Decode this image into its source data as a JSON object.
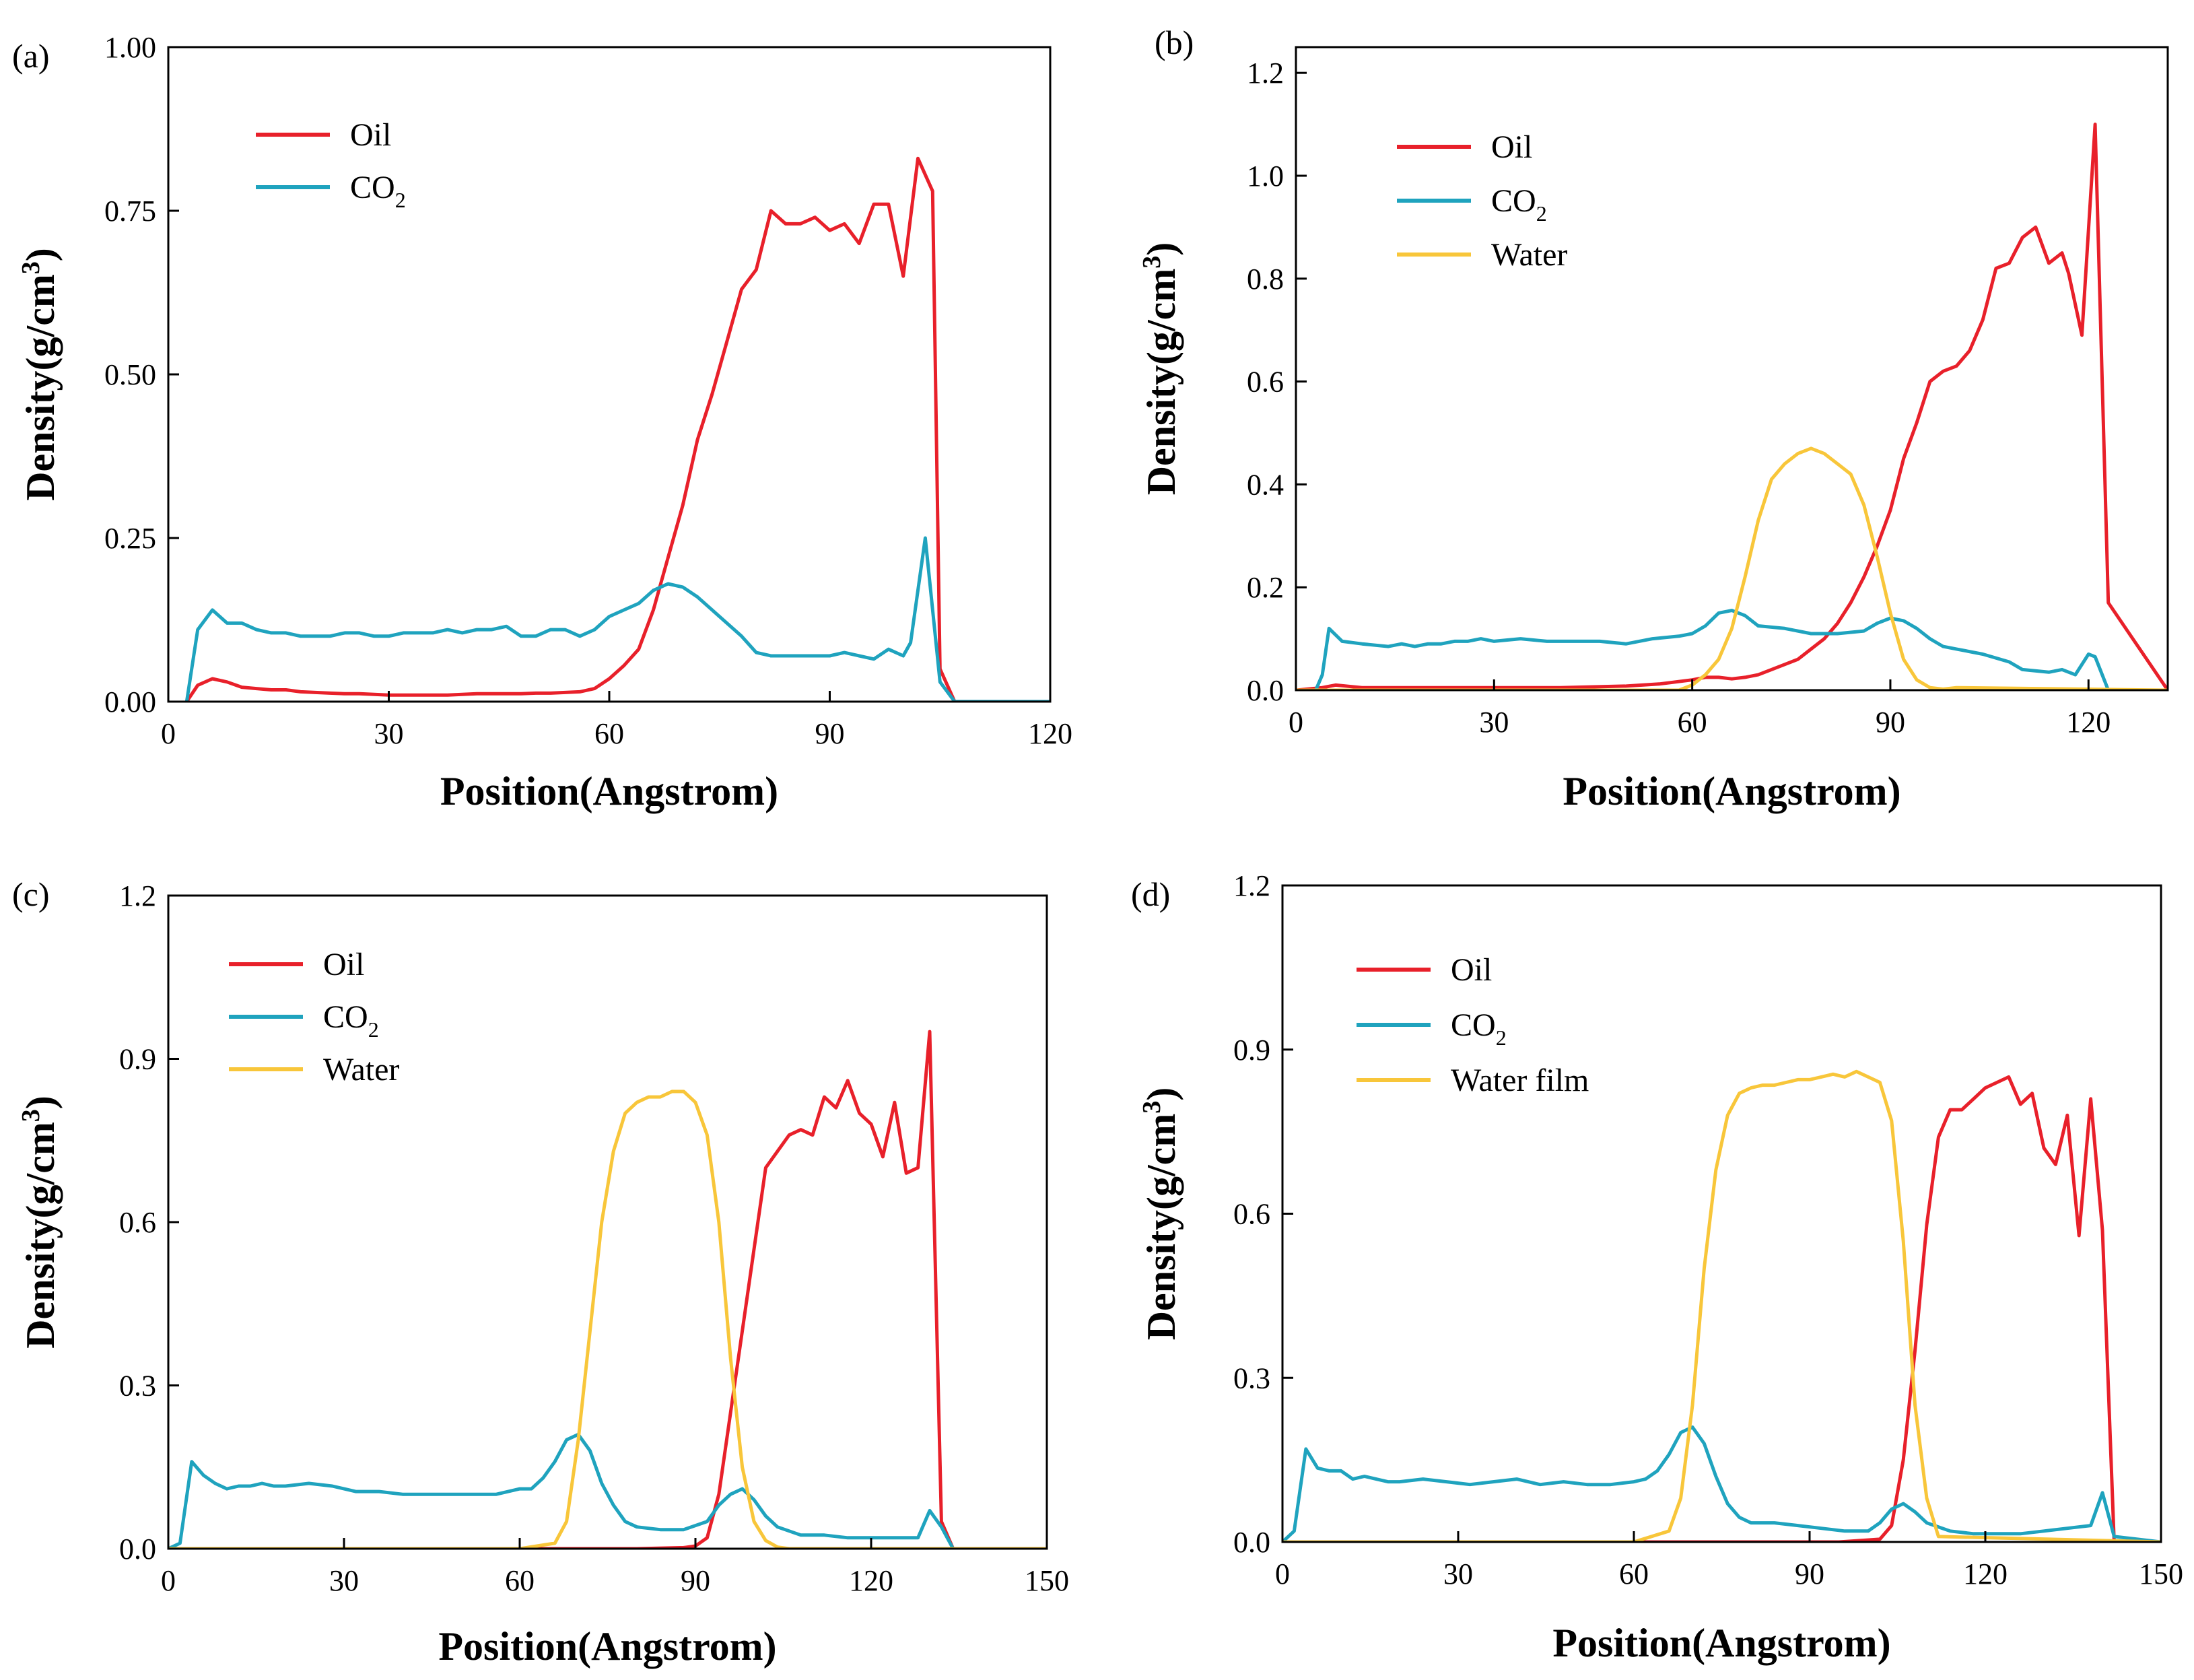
{
  "chart_data": [
    {
      "type": "line",
      "panel": "(a)",
      "xlabel": "Position(Angstrom)",
      "ylabel": "Density(g/cm",
      "ylabel_sup": "3",
      "ylabel_close": ")",
      "xlim": [
        0,
        120
      ],
      "ylim": [
        0,
        1.0
      ],
      "xticks": [
        0,
        30,
        60,
        90,
        120
      ],
      "yticks": [
        0,
        0.25,
        0.5,
        0.75,
        1.0
      ],
      "ytick_labels": [
        "0.00",
        "0.25",
        "0.50",
        "0.75",
        "1.00"
      ],
      "xtick_labels": [
        "0",
        "30",
        "60",
        "90",
        "120"
      ],
      "legend_position": "top-left",
      "series": [
        {
          "name": "Oil",
          "sub": "",
          "color": "#e8202a",
          "x": [
            2.5,
            4,
            6,
            8,
            10,
            12,
            14,
            16,
            18,
            20,
            22,
            24,
            26,
            28,
            30,
            32,
            34,
            36,
            38,
            40,
            42,
            44,
            46,
            48,
            50,
            52,
            54,
            56,
            58,
            60,
            62,
            64,
            66,
            68,
            70,
            72,
            74,
            76,
            78,
            80,
            82,
            84,
            86,
            88,
            90,
            92,
            94,
            96,
            98,
            100,
            102,
            104,
            105,
            107,
            110,
            120
          ],
          "y": [
            0,
            0.025,
            0.035,
            0.03,
            0.022,
            0.02,
            0.018,
            0.018,
            0.015,
            0.014,
            0.013,
            0.012,
            0.012,
            0.011,
            0.01,
            0.01,
            0.01,
            0.01,
            0.01,
            0.011,
            0.012,
            0.012,
            0.012,
            0.012,
            0.013,
            0.013,
            0.014,
            0.015,
            0.02,
            0.035,
            0.055,
            0.08,
            0.14,
            0.22,
            0.3,
            0.4,
            0.47,
            0.55,
            0.63,
            0.66,
            0.75,
            0.73,
            0.73,
            0.74,
            0.72,
            0.73,
            0.7,
            0.76,
            0.76,
            0.65,
            0.83,
            0.78,
            0.05,
            0,
            0,
            0
          ]
        },
        {
          "name": "CO",
          "sub": "2",
          "color": "#1fa3be",
          "x": [
            2.5,
            4,
            6,
            8,
            10,
            12,
            14,
            16,
            18,
            20,
            22,
            24,
            26,
            28,
            30,
            32,
            34,
            36,
            38,
            40,
            42,
            44,
            46,
            48,
            50,
            52,
            54,
            56,
            58,
            60,
            62,
            64,
            66,
            68,
            70,
            72,
            74,
            76,
            78,
            80,
            82,
            84,
            86,
            88,
            90,
            92,
            94,
            96,
            98,
            100,
            101,
            103,
            105,
            107,
            110,
            120
          ],
          "y": [
            0,
            0.11,
            0.14,
            0.12,
            0.12,
            0.11,
            0.105,
            0.105,
            0.1,
            0.1,
            0.1,
            0.105,
            0.105,
            0.1,
            0.1,
            0.105,
            0.105,
            0.105,
            0.11,
            0.105,
            0.11,
            0.11,
            0.115,
            0.1,
            0.1,
            0.11,
            0.11,
            0.1,
            0.11,
            0.13,
            0.14,
            0.15,
            0.17,
            0.18,
            0.175,
            0.16,
            0.14,
            0.12,
            0.1,
            0.075,
            0.07,
            0.07,
            0.07,
            0.07,
            0.07,
            0.075,
            0.07,
            0.065,
            0.08,
            0.07,
            0.09,
            0.25,
            0.03,
            0,
            0,
            0
          ]
        }
      ]
    },
    {
      "type": "line",
      "panel": "(b)",
      "xlabel": "Position(Angstrom)",
      "ylabel": "Density(g/cm",
      "ylabel_sup": "3",
      "ylabel_close": ")",
      "xlim": [
        0,
        132
      ],
      "ylim": [
        0,
        1.25
      ],
      "xticks": [
        0,
        30,
        60,
        90,
        120
      ],
      "yticks": [
        0,
        0.2,
        0.4,
        0.6,
        0.8,
        1.0,
        1.2
      ],
      "ytick_labels": [
        "0.0",
        "0.2",
        "0.4",
        "0.6",
        "0.8",
        "1.0",
        "1.2"
      ],
      "xtick_labels": [
        "0",
        "30",
        "60",
        "90",
        "120"
      ],
      "legend_position": "top-left",
      "series": [
        {
          "name": "Oil",
          "sub": "",
          "color": "#e8202a",
          "x": [
            0,
            4,
            6,
            10,
            20,
            30,
            40,
            50,
            55,
            60,
            62,
            64,
            66,
            68,
            70,
            72,
            74,
            76,
            78,
            80,
            82,
            84,
            86,
            88,
            90,
            92,
            94,
            96,
            98,
            100,
            102,
            104,
            106,
            108,
            110,
            112,
            114,
            116,
            117,
            119,
            121,
            123,
            132
          ],
          "y": [
            0,
            0.005,
            0.01,
            0.005,
            0.005,
            0.005,
            0.005,
            0.008,
            0.012,
            0.02,
            0.025,
            0.025,
            0.022,
            0.025,
            0.03,
            0.04,
            0.05,
            0.06,
            0.08,
            0.1,
            0.13,
            0.17,
            0.22,
            0.28,
            0.35,
            0.45,
            0.52,
            0.6,
            0.62,
            0.63,
            0.66,
            0.72,
            0.82,
            0.83,
            0.88,
            0.9,
            0.83,
            0.85,
            0.81,
            0.69,
            1.1,
            0.17,
            0
          ]
        },
        {
          "name": "CO",
          "sub": "2",
          "color": "#1fa3be",
          "x": [
            0,
            3,
            4,
            5,
            7,
            10,
            14,
            16,
            18,
            20,
            22,
            24,
            26,
            28,
            30,
            34,
            38,
            42,
            46,
            50,
            54,
            58,
            60,
            62,
            64,
            66,
            68,
            70,
            74,
            78,
            82,
            86,
            88,
            90,
            92,
            94,
            96,
            98,
            100,
            104,
            108,
            110,
            114,
            116,
            118,
            120,
            121,
            123,
            132
          ],
          "y": [
            0,
            0,
            0.03,
            0.12,
            0.095,
            0.09,
            0.085,
            0.09,
            0.085,
            0.09,
            0.09,
            0.095,
            0.095,
            0.1,
            0.095,
            0.1,
            0.095,
            0.095,
            0.095,
            0.09,
            0.1,
            0.105,
            0.11,
            0.125,
            0.15,
            0.155,
            0.145,
            0.125,
            0.12,
            0.11,
            0.11,
            0.115,
            0.13,
            0.14,
            0.135,
            0.12,
            0.1,
            0.085,
            0.08,
            0.07,
            0.055,
            0.04,
            0.035,
            0.04,
            0.03,
            0.07,
            0.065,
            0.0,
            0
          ]
        },
        {
          "name": "Water",
          "sub": "",
          "color": "#f8c63a",
          "x": [
            0,
            50,
            58,
            60,
            62,
            64,
            66,
            68,
            70,
            72,
            74,
            76,
            78,
            80,
            82,
            84,
            86,
            88,
            90,
            92,
            94,
            96,
            98,
            100,
            132
          ],
          "y": [
            0,
            0,
            0,
            0.01,
            0.03,
            0.06,
            0.12,
            0.22,
            0.33,
            0.41,
            0.44,
            0.46,
            0.47,
            0.46,
            0.44,
            0.42,
            0.36,
            0.26,
            0.15,
            0.06,
            0.02,
            0.005,
            0.002,
            0.005,
            0
          ]
        }
      ]
    },
    {
      "type": "line",
      "panel": "(c)",
      "xlabel": "Position(Angstrom)",
      "ylabel": "Density(g/cm",
      "ylabel_sup": "3",
      "ylabel_close": ")",
      "xlim": [
        0,
        150
      ],
      "ylim": [
        0,
        1.2
      ],
      "xticks": [
        0,
        30,
        60,
        90,
        120,
        150
      ],
      "yticks": [
        0,
        0.3,
        0.6,
        0.9,
        1.2
      ],
      "ytick_labels": [
        "0.0",
        "0.3",
        "0.6",
        "0.9",
        "1.2"
      ],
      "xtick_labels": [
        "0",
        "30",
        "60",
        "90",
        "120",
        "150"
      ],
      "legend_position": "top-left",
      "series": [
        {
          "name": "Oil",
          "sub": "",
          "color": "#e8202a",
          "x": [
            0,
            80,
            88,
            90,
            92,
            94,
            96,
            98,
            100,
            102,
            104,
            106,
            108,
            110,
            112,
            114,
            116,
            118,
            120,
            122,
            124,
            126,
            128,
            130,
            132,
            134,
            150
          ],
          "y": [
            0,
            0,
            0.002,
            0.005,
            0.02,
            0.1,
            0.25,
            0.4,
            0.55,
            0.7,
            0.73,
            0.76,
            0.77,
            0.76,
            0.83,
            0.81,
            0.86,
            0.8,
            0.78,
            0.72,
            0.82,
            0.69,
            0.7,
            0.95,
            0.05,
            0,
            0
          ]
        },
        {
          "name": "CO",
          "sub": "2",
          "color": "#1fa3be",
          "x": [
            0,
            2,
            4,
            6,
            8,
            10,
            12,
            14,
            16,
            18,
            20,
            24,
            28,
            32,
            36,
            40,
            44,
            48,
            52,
            56,
            60,
            62,
            64,
            66,
            68,
            70,
            72,
            74,
            76,
            78,
            80,
            84,
            88,
            92,
            94,
            96,
            98,
            100,
            102,
            104,
            108,
            112,
            116,
            120,
            124,
            128,
            130,
            132,
            134,
            150
          ],
          "y": [
            0,
            0.01,
            0.16,
            0.135,
            0.12,
            0.11,
            0.115,
            0.115,
            0.12,
            0.115,
            0.115,
            0.12,
            0.115,
            0.105,
            0.105,
            0.1,
            0.1,
            0.1,
            0.1,
            0.1,
            0.11,
            0.11,
            0.13,
            0.16,
            0.2,
            0.21,
            0.18,
            0.12,
            0.08,
            0.05,
            0.04,
            0.035,
            0.035,
            0.05,
            0.08,
            0.1,
            0.11,
            0.09,
            0.06,
            0.04,
            0.025,
            0.025,
            0.02,
            0.02,
            0.02,
            0.02,
            0.07,
            0.04,
            0,
            0
          ]
        },
        {
          "name": "Water",
          "sub": "",
          "color": "#f8c63a",
          "x": [
            0,
            60,
            66,
            68,
            70,
            72,
            74,
            76,
            78,
            80,
            82,
            84,
            86,
            88,
            90,
            92,
            94,
            96,
            98,
            100,
            102,
            104,
            106,
            150
          ],
          "y": [
            0,
            0,
            0.01,
            0.05,
            0.2,
            0.4,
            0.6,
            0.73,
            0.8,
            0.82,
            0.83,
            0.83,
            0.84,
            0.84,
            0.82,
            0.76,
            0.6,
            0.35,
            0.15,
            0.05,
            0.015,
            0.003,
            0,
            0
          ]
        }
      ]
    },
    {
      "type": "line",
      "panel": "(d)",
      "xlabel": "Position(Angstrom)",
      "ylabel": "Density(g/cm",
      "ylabel_sup": "3",
      "ylabel_close": ")",
      "xlim": [
        0,
        150
      ],
      "ylim": [
        0,
        1.2
      ],
      "xticks": [
        0,
        30,
        60,
        90,
        120,
        150
      ],
      "yticks": [
        0,
        0.3,
        0.6,
        0.9,
        1.2
      ],
      "ytick_labels": [
        "0.0",
        "0.3",
        "0.6",
        "0.9",
        "1.2"
      ],
      "xtick_labels": [
        "0",
        "30",
        "60",
        "90",
        "120",
        "150"
      ],
      "legend_position": "top-left",
      "series": [
        {
          "name": "Oil",
          "sub": "",
          "color": "#e8202a",
          "x": [
            0,
            95,
            102,
            104,
            106,
            108,
            110,
            112,
            114,
            116,
            118,
            120,
            122,
            124,
            126,
            128,
            130,
            132,
            134,
            136,
            138,
            140,
            142,
            150
          ],
          "y": [
            0,
            0,
            0.005,
            0.03,
            0.15,
            0.35,
            0.58,
            0.74,
            0.79,
            0.79,
            0.81,
            0.83,
            0.84,
            0.85,
            0.8,
            0.82,
            0.72,
            0.69,
            0.78,
            0.56,
            0.81,
            0.57,
            0,
            0
          ]
        },
        {
          "name": "CO",
          "sub": "2",
          "color": "#1fa3be",
          "x": [
            0,
            2,
            4,
            6,
            8,
            10,
            12,
            14,
            16,
            18,
            20,
            24,
            28,
            32,
            36,
            40,
            44,
            48,
            52,
            56,
            60,
            62,
            64,
            66,
            68,
            70,
            72,
            74,
            76,
            78,
            80,
            84,
            88,
            92,
            96,
            100,
            102,
            104,
            106,
            108,
            110,
            114,
            118,
            122,
            126,
            130,
            134,
            138,
            140,
            142,
            150
          ],
          "y": [
            0,
            0.02,
            0.17,
            0.135,
            0.13,
            0.13,
            0.115,
            0.12,
            0.115,
            0.11,
            0.11,
            0.115,
            0.11,
            0.105,
            0.11,
            0.115,
            0.105,
            0.11,
            0.105,
            0.105,
            0.11,
            0.115,
            0.13,
            0.16,
            0.2,
            0.21,
            0.18,
            0.12,
            0.07,
            0.045,
            0.035,
            0.035,
            0.03,
            0.025,
            0.02,
            0.02,
            0.035,
            0.06,
            0.07,
            0.055,
            0.035,
            0.02,
            0.015,
            0.015,
            0.015,
            0.02,
            0.025,
            0.03,
            0.09,
            0.01,
            0
          ]
        },
        {
          "name": "Water film",
          "sub": "",
          "color": "#f8c63a",
          "x": [
            0,
            60,
            66,
            68,
            70,
            72,
            74,
            76,
            78,
            80,
            82,
            84,
            86,
            88,
            90,
            92,
            94,
            96,
            98,
            100,
            102,
            104,
            106,
            108,
            110,
            112,
            150
          ],
          "y": [
            0,
            0,
            0.02,
            0.08,
            0.25,
            0.5,
            0.68,
            0.78,
            0.82,
            0.83,
            0.835,
            0.835,
            0.84,
            0.845,
            0.845,
            0.85,
            0.855,
            0.85,
            0.86,
            0.85,
            0.84,
            0.77,
            0.55,
            0.25,
            0.08,
            0.01,
            0
          ]
        }
      ]
    }
  ]
}
